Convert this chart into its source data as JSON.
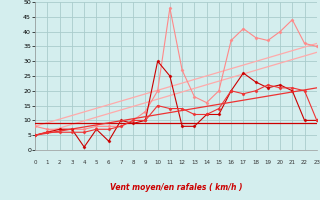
{
  "xlabel": "Vent moyen/en rafales ( km/h )",
  "bg_color": "#d4eeee",
  "grid_color": "#aacccc",
  "xlim": [
    0,
    23
  ],
  "ylim": [
    0,
    50
  ],
  "ytick_vals": [
    0,
    5,
    10,
    15,
    20,
    25,
    30,
    35,
    40,
    45,
    50
  ],
  "xtick_vals": [
    0,
    1,
    2,
    3,
    4,
    5,
    6,
    7,
    8,
    9,
    10,
    11,
    12,
    13,
    14,
    15,
    16,
    17,
    18,
    19,
    20,
    21,
    22,
    23
  ],
  "arrow_syms": [
    "↙",
    "↑",
    "↖",
    "↑",
    "↖",
    "↙",
    "↖",
    "↗",
    "↙",
    "↖",
    "↙",
    "↗",
    "↖",
    "↑",
    "↖",
    "↗",
    "↑",
    "↑",
    "↑",
    "↑",
    "↑",
    "↑",
    "↗",
    "→"
  ],
  "series": [
    {
      "color": "#ffaaaa",
      "lw": 0.9,
      "marker": null,
      "data_x": [
        0,
        23
      ],
      "data_y": [
        8.0,
        36.0
      ]
    },
    {
      "color": "#ffaaaa",
      "lw": 0.9,
      "marker": null,
      "data_x": [
        0,
        23
      ],
      "data_y": [
        5.0,
        33.0
      ]
    },
    {
      "color": "#ff8888",
      "lw": 0.8,
      "marker": "D",
      "ms": 1.6,
      "data_x": [
        0,
        1,
        2,
        3,
        4,
        5,
        6,
        7,
        8,
        9,
        10,
        11,
        12,
        13,
        14,
        15,
        16,
        17,
        18,
        19,
        20,
        21,
        22,
        23
      ],
      "data_y": [
        8,
        7,
        7,
        7,
        7,
        8,
        8,
        8,
        10,
        13,
        20,
        48,
        27,
        18,
        16,
        20,
        37,
        41,
        38,
        37,
        40,
        44,
        36,
        35
      ]
    },
    {
      "color": "#cc0000",
      "lw": 0.9,
      "marker": null,
      "data_x": [
        0,
        23
      ],
      "data_y": [
        9.0,
        9.0
      ]
    },
    {
      "color": "#cc0000",
      "lw": 0.8,
      "marker": "D",
      "ms": 1.6,
      "data_x": [
        0,
        1,
        2,
        3,
        4,
        5,
        6,
        7,
        8,
        9,
        10,
        11,
        12,
        13,
        14,
        15,
        16,
        17,
        18,
        19,
        20,
        21,
        22,
        23
      ],
      "data_y": [
        5,
        6,
        7,
        7,
        1,
        7,
        3,
        10,
        9,
        10,
        30,
        25,
        8,
        8,
        12,
        12,
        20,
        26,
        23,
        21,
        22,
        20,
        10,
        10
      ]
    },
    {
      "color": "#ee3333",
      "lw": 0.9,
      "marker": null,
      "data_x": [
        0,
        23
      ],
      "data_y": [
        5.0,
        21.0
      ]
    },
    {
      "color": "#ee3333",
      "lw": 0.8,
      "marker": "D",
      "ms": 1.6,
      "data_x": [
        0,
        1,
        2,
        3,
        4,
        5,
        6,
        7,
        8,
        9,
        10,
        11,
        12,
        13,
        14,
        15,
        16,
        17,
        18,
        19,
        20,
        21,
        22,
        23
      ],
      "data_y": [
        5,
        6,
        6,
        6,
        6,
        7,
        7,
        8,
        10,
        10,
        15,
        14,
        14,
        12,
        12,
        14,
        20,
        19,
        20,
        22,
        21,
        21,
        20,
        10
      ]
    }
  ]
}
